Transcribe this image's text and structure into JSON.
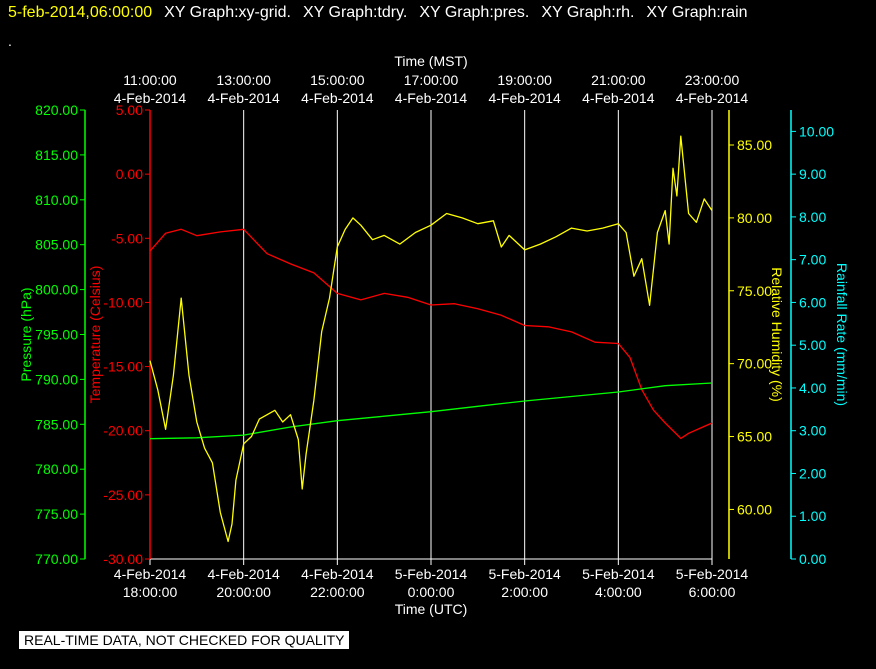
{
  "header": {
    "timestamp": "5-feb-2014,06:00:00",
    "graphs": [
      "XY Graph:xy-grid.",
      "XY Graph:tdry.",
      "XY Graph:pres.",
      "XY Graph:rh.",
      "XY Graph:rain"
    ],
    "second_line": "."
  },
  "footer": {
    "notice": "REAL-TIME DATA, NOT CHECKED FOR QUALITY"
  },
  "colors": {
    "background": "#000000",
    "pressure": "#00ff00",
    "temperature": "#ff0000",
    "humidity": "#ffff00",
    "rain": "#00ffff",
    "grid": "#ffffff"
  },
  "chart_data": {
    "type": "line",
    "x_top": {
      "label": "Time (MST)",
      "ticks": [
        {
          "time": "11:00:00",
          "date": "4-Feb-2014"
        },
        {
          "time": "13:00:00",
          "date": "4-Feb-2014"
        },
        {
          "time": "15:00:00",
          "date": "4-Feb-2014"
        },
        {
          "time": "17:00:00",
          "date": "4-Feb-2014"
        },
        {
          "time": "19:00:00",
          "date": "4-Feb-2014"
        },
        {
          "time": "21:00:00",
          "date": "4-Feb-2014"
        },
        {
          "time": "23:00:00",
          "date": "4-Feb-2014"
        }
      ]
    },
    "x_bottom": {
      "label": "Time (UTC)",
      "ticks": [
        {
          "date": "4-Feb-2014",
          "time": "18:00:00"
        },
        {
          "date": "4-Feb-2014",
          "time": "20:00:00"
        },
        {
          "date": "4-Feb-2014",
          "time": "22:00:00"
        },
        {
          "date": "5-Feb-2014",
          "time": "0:00:00"
        },
        {
          "date": "5-Feb-2014",
          "time": "2:00:00"
        },
        {
          "date": "5-Feb-2014",
          "time": "4:00:00"
        },
        {
          "date": "5-Feb-2014",
          "time": "6:00:00"
        }
      ]
    },
    "x_range_utc": [
      "2014-02-04T18:00:00",
      "2014-02-05T06:00:00"
    ],
    "axes": {
      "pressure": {
        "label": "Pressure (hPa)",
        "range": [
          770,
          820
        ],
        "ticks": [
          "770.00",
          "775.00",
          "780.00",
          "785.00",
          "790.00",
          "795.00",
          "800.00",
          "805.00",
          "810.00",
          "815.00",
          "820.00"
        ]
      },
      "temperature": {
        "label": "Temperature (Celsius)",
        "range": [
          -30,
          5
        ],
        "ticks": [
          "-30.00",
          "-25.00",
          "-20.00",
          "-15.00",
          "-10.00",
          "-5.00",
          "0.00",
          "5.00"
        ]
      },
      "humidity": {
        "label": "Relative Humidity (%)",
        "range": [
          56.6,
          87.4
        ],
        "ticks": [
          "60.00",
          "65.00",
          "70.00",
          "75.00",
          "80.00",
          "85.00"
        ]
      },
      "rain": {
        "label": "Rainfall Rate (mm/min)",
        "range": [
          0,
          10.5
        ],
        "ticks": [
          "0.00",
          "1.00",
          "2.00",
          "3.00",
          "4.00",
          "5.00",
          "6.00",
          "7.00",
          "8.00",
          "9.00",
          "10.00"
        ]
      }
    },
    "grid": true,
    "series": [
      {
        "name": "tdry",
        "axis": "temperature",
        "x": [
          "2014-02-04T18:00",
          "2014-02-04T18:20",
          "2014-02-04T18:40",
          "2014-02-04T19:00",
          "2014-02-04T19:30",
          "2014-02-04T20:00",
          "2014-02-04T20:30",
          "2014-02-04T21:00",
          "2014-02-04T21:30",
          "2014-02-04T22:00",
          "2014-02-04T22:30",
          "2014-02-04T23:00",
          "2014-02-04T23:30",
          "2014-02-05T00:00",
          "2014-02-05T00:30",
          "2014-02-05T01:00",
          "2014-02-05T01:30",
          "2014-02-05T02:00",
          "2014-02-05T02:30",
          "2014-02-05T03:00",
          "2014-02-05T03:30",
          "2014-02-05T04:00",
          "2014-02-05T04:15",
          "2014-02-05T04:30",
          "2014-02-05T04:45",
          "2014-02-05T05:00",
          "2014-02-05T05:20",
          "2014-02-05T05:30",
          "2014-02-05T05:45",
          "2014-02-05T06:00"
        ],
        "y": [
          -6.0,
          -4.6,
          -4.3,
          -4.8,
          -4.5,
          -4.3,
          -6.2,
          -7.0,
          -7.7,
          -9.3,
          -9.8,
          -9.3,
          -9.6,
          -10.2,
          -10.1,
          -10.5,
          -11.0,
          -11.8,
          -11.9,
          -12.3,
          -13.1,
          -13.2,
          -14.3,
          -16.8,
          -18.4,
          -19.4,
          -20.6,
          -20.2,
          -19.8,
          -19.4
        ]
      },
      {
        "name": "pres",
        "axis": "pressure",
        "x": [
          "2014-02-04T18:00",
          "2014-02-04T19:00",
          "2014-02-04T20:00",
          "2014-02-04T21:00",
          "2014-02-04T22:00",
          "2014-02-04T23:00",
          "2014-02-05T00:00",
          "2014-02-05T01:00",
          "2014-02-05T02:00",
          "2014-02-05T03:00",
          "2014-02-05T04:00",
          "2014-02-05T05:00",
          "2014-02-05T06:00"
        ],
        "y": [
          783.4,
          783.5,
          783.8,
          784.7,
          785.4,
          785.9,
          786.4,
          787.0,
          787.6,
          788.1,
          788.6,
          789.3,
          789.6
        ]
      },
      {
        "name": "rh",
        "axis": "humidity",
        "x": [
          "2014-02-04T18:00",
          "2014-02-04T18:10",
          "2014-02-04T18:20",
          "2014-02-04T18:30",
          "2014-02-04T18:40",
          "2014-02-04T18:50",
          "2014-02-04T19:00",
          "2014-02-04T19:10",
          "2014-02-04T19:20",
          "2014-02-04T19:30",
          "2014-02-04T19:40",
          "2014-02-04T19:45",
          "2014-02-04T19:50",
          "2014-02-04T20:00",
          "2014-02-04T20:10",
          "2014-02-04T20:20",
          "2014-02-04T20:30",
          "2014-02-04T20:40",
          "2014-02-04T20:50",
          "2014-02-04T21:00",
          "2014-02-04T21:10",
          "2014-02-04T21:15",
          "2014-02-04T21:20",
          "2014-02-04T21:30",
          "2014-02-04T21:40",
          "2014-02-04T21:50",
          "2014-02-04T22:00",
          "2014-02-04T22:10",
          "2014-02-04T22:20",
          "2014-02-04T22:30",
          "2014-02-04T22:45",
          "2014-02-04T23:00",
          "2014-02-04T23:20",
          "2014-02-04T23:40",
          "2014-02-05T00:00",
          "2014-02-05T00:20",
          "2014-02-05T00:40",
          "2014-02-05T01:00",
          "2014-02-05T01:20",
          "2014-02-05T01:30",
          "2014-02-05T01:40",
          "2014-02-05T02:00",
          "2014-02-05T02:20",
          "2014-02-05T02:40",
          "2014-02-05T03:00",
          "2014-02-05T03:20",
          "2014-02-05T03:40",
          "2014-02-05T04:00",
          "2014-02-05T04:10",
          "2014-02-05T04:20",
          "2014-02-05T04:30",
          "2014-02-05T04:40",
          "2014-02-05T04:50",
          "2014-02-05T05:00",
          "2014-02-05T05:05",
          "2014-02-05T05:10",
          "2014-02-05T05:15",
          "2014-02-05T05:20",
          "2014-02-05T05:30",
          "2014-02-05T05:40",
          "2014-02-05T05:50",
          "2014-02-05T06:00"
        ],
        "y": [
          70.2,
          68.2,
          65.5,
          69.2,
          74.5,
          69.2,
          66.0,
          64.2,
          63.2,
          59.8,
          57.8,
          59.0,
          62.0,
          64.5,
          65.0,
          66.2,
          66.5,
          66.8,
          66.0,
          66.5,
          64.8,
          61.4,
          63.8,
          67.5,
          72.2,
          74.5,
          78.0,
          79.2,
          80.0,
          79.5,
          78.5,
          78.8,
          78.2,
          79.0,
          79.5,
          80.3,
          80.0,
          79.6,
          79.8,
          78.0,
          78.8,
          77.8,
          78.2,
          78.7,
          79.3,
          79.1,
          79.3,
          79.6,
          79.0,
          76.0,
          77.2,
          74.0,
          79.0,
          80.5,
          78.2,
          83.4,
          81.5,
          85.6,
          80.3,
          79.7,
          81.3,
          80.5
        ]
      },
      {
        "name": "rain",
        "axis": "rain",
        "x": [],
        "y": []
      }
    ]
  }
}
